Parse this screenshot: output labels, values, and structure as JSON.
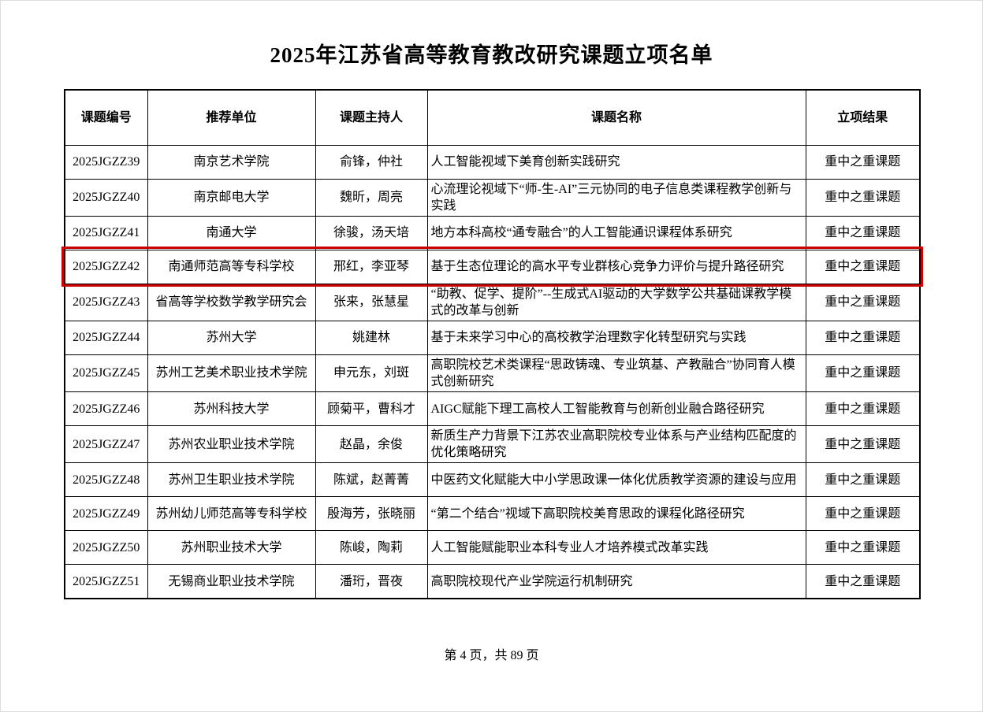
{
  "title": "2025年江苏省高等教育教改研究课题立项名单",
  "footer": {
    "page_info": "第 4 页，共 89 页"
  },
  "colors": {
    "highlight_border": "#cc0000",
    "table_border": "#000000",
    "background": "#ffffff"
  },
  "table": {
    "headers": [
      "课题编号",
      "推荐单位",
      "课题主持人",
      "课题名称",
      "立项结果"
    ],
    "rows": [
      {
        "id": "2025JGZZ39",
        "unit": "南京艺术学院",
        "host": "俞锋，仲社",
        "name": "人工智能视域下美育创新实践研究",
        "result": "重中之重课题",
        "highlighted": false
      },
      {
        "id": "2025JGZZ40",
        "unit": "南京邮电大学",
        "host": "魏昕，周亮",
        "name": "心流理论视域下“师-生-AI”三元协同的电子信息类课程教学创新与实践",
        "result": "重中之重课题",
        "highlighted": false
      },
      {
        "id": "2025JGZZ41",
        "unit": "南通大学",
        "host": "徐骏，汤天培",
        "name": "地方本科高校“通专融合”的人工智能通识课程体系研究",
        "result": "重中之重课题",
        "highlighted": false
      },
      {
        "id": "2025JGZZ42",
        "unit": "南通师范高等专科学校",
        "host": "邢红，李亚琴",
        "name": "基于生态位理论的高水平专业群核心竞争力评价与提升路径研究",
        "result": "重中之重课题",
        "highlighted": true
      },
      {
        "id": "2025JGZZ43",
        "unit": "省高等学校数学教学研究会",
        "host": "张来，张慧星",
        "name": "“助教、促学、提阶”--生成式AI驱动的大学数学公共基础课教学模式的改革与创新",
        "result": "重中之重课题",
        "highlighted": false
      },
      {
        "id": "2025JGZZ44",
        "unit": "苏州大学",
        "host": "姚建林",
        "name": "基于未来学习中心的高校教学治理数字化转型研究与实践",
        "result": "重中之重课题",
        "highlighted": false
      },
      {
        "id": "2025JGZZ45",
        "unit": "苏州工艺美术职业技术学院",
        "host": "申元东，刘斑",
        "name": "高职院校艺术类课程“思政铸魂、专业筑基、产教融合”协同育人模式创新研究",
        "result": "重中之重课题",
        "highlighted": false
      },
      {
        "id": "2025JGZZ46",
        "unit": "苏州科技大学",
        "host": "顾菊平，曹科才",
        "name": "AIGC赋能下理工高校人工智能教育与创新创业融合路径研究",
        "result": "重中之重课题",
        "highlighted": false
      },
      {
        "id": "2025JGZZ47",
        "unit": "苏州农业职业技术学院",
        "host": "赵晶，余俊",
        "name": "新质生产力背景下江苏农业高职院校专业体系与产业结构匹配度的优化策略研究",
        "result": "重中之重课题",
        "highlighted": false
      },
      {
        "id": "2025JGZZ48",
        "unit": "苏州卫生职业技术学院",
        "host": "陈斌，赵菁菁",
        "name": "中医药文化赋能大中小学思政课一体化优质教学资源的建设与应用",
        "result": "重中之重课题",
        "highlighted": false
      },
      {
        "id": "2025JGZZ49",
        "unit": "苏州幼儿师范高等专科学校",
        "host": "殷海芳，张晓丽",
        "name": "“第二个结合”视域下高职院校美育思政的课程化路径研究",
        "result": "重中之重课题",
        "highlighted": false
      },
      {
        "id": "2025JGZZ50",
        "unit": "苏州职业技术大学",
        "host": "陈峻，陶莉",
        "name": "人工智能赋能职业本科专业人才培养模式改革实践",
        "result": "重中之重课题",
        "highlighted": false
      },
      {
        "id": "2025JGZZ51",
        "unit": "无锡商业职业技术学院",
        "host": "潘珩，晋夜",
        "name": "高职院校现代产业学院运行机制研究",
        "result": "重中之重课题",
        "highlighted": false
      }
    ]
  }
}
